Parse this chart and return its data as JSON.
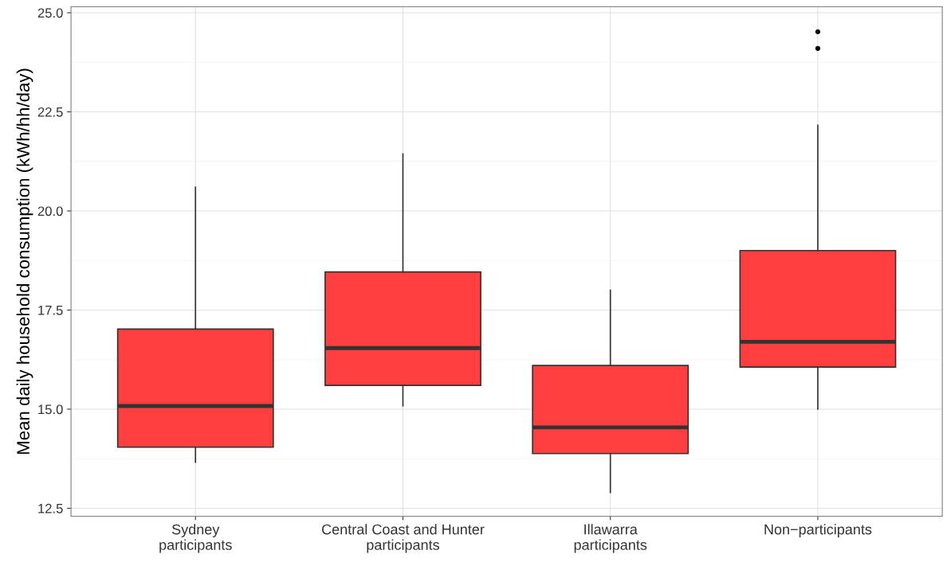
{
  "chart_data": {
    "type": "box",
    "ylabel": "Mean daily household consumption (kWh/hh/day)",
    "categories": [
      "Sydney\nparticipants",
      "Central Coast and Hunter\nparticipants",
      "Illawarra\nparticipants",
      "Non−participants"
    ],
    "boxes": [
      {
        "low": 13.66,
        "q1": 14.04,
        "median": 15.08,
        "q3": 17.02,
        "high": 20.6
      },
      {
        "low": 15.08,
        "q1": 15.6,
        "median": 16.54,
        "q3": 18.46,
        "high": 21.44
      },
      {
        "low": 12.9,
        "q1": 13.88,
        "median": 14.54,
        "q3": 16.1,
        "high": 18.0
      },
      {
        "low": 15.0,
        "q1": 16.06,
        "median": 16.7,
        "q3": 19.0,
        "high": 22.16,
        "outliers": [
          24.52,
          24.1
        ]
      }
    ],
    "color": "#ff3f3f",
    "ylim": [
      12.3,
      25.15
    ],
    "yticks": [
      12.5,
      {
        "value": 15,
        "label": "15.0"
      },
      17.5,
      {
        "value": 20,
        "label": "20.0"
      },
      22.5,
      {
        "value": 25,
        "label": "25.0"
      }
    ],
    "grid": true
  }
}
